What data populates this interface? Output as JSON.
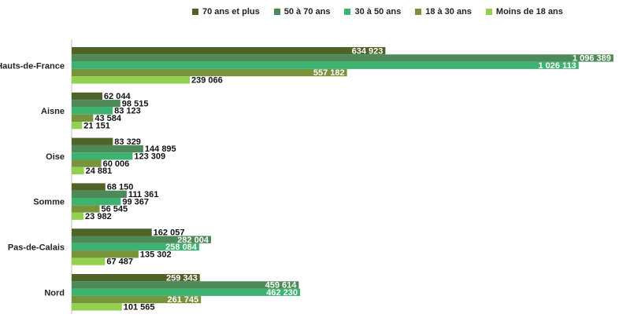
{
  "chart_data": {
    "type": "bar",
    "orientation": "horizontal",
    "categories": [
      "Hauts-de-France",
      "Aisne",
      "Oise",
      "Somme",
      "Pas-de-Calais",
      "Nord"
    ],
    "series": [
      {
        "name": "70 ans et plus",
        "color": "#4f6228",
        "values": [
          634923,
          62044,
          83329,
          68150,
          162057,
          259343
        ],
        "labels": [
          "634 923",
          "62 044",
          "83 329",
          "68 150",
          "162 057",
          "259 343"
        ]
      },
      {
        "name": "50 à 70 ans",
        "color": "#4e8a57",
        "values": [
          1096389,
          98515,
          144895,
          111361,
          282004,
          459614
        ],
        "labels": [
          "1 096 389",
          "98 515",
          "144 895",
          "111 361",
          "282 004",
          "459 614"
        ]
      },
      {
        "name": "30 à 50 ans",
        "color": "#3cb371",
        "values": [
          1026113,
          83123,
          123309,
          99367,
          258084,
          462230
        ],
        "labels": [
          "1 026 113",
          "83 123",
          "123 309",
          "99 367",
          "258 084",
          "462 230"
        ]
      },
      {
        "name": "18 à 30 ans",
        "color": "#77933c",
        "values": [
          557182,
          43584,
          60006,
          56545,
          135302,
          261745
        ],
        "labels": [
          "557 182",
          "43 584",
          "60 006",
          "56 545",
          "135 302",
          "261 745"
        ]
      },
      {
        "name": "Moins de 18 ans",
        "color": "#92d050",
        "values": [
          239066,
          21151,
          24881,
          23982,
          67487,
          101565
        ],
        "labels": [
          "239 066",
          "21 151",
          "24 881",
          "23 982",
          "67 487",
          "101 565"
        ]
      }
    ],
    "legend_position": "top",
    "grid": false,
    "xlim": [
      0,
      1130000
    ]
  }
}
